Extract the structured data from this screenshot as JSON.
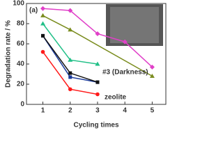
{
  "chart_data": {
    "type": "line",
    "panel_label": "(a)",
    "x_label": "Cycling times",
    "y_label": "Degradation rate / %",
    "xlim": [
      0.4,
      5.5
    ],
    "xticks": [
      1,
      2,
      3,
      4,
      5
    ],
    "ylim": [
      0,
      100
    ],
    "yticks": [
      0,
      20,
      40,
      60,
      80,
      100
    ],
    "series": [
      {
        "color": "#e040c8",
        "x": [
          1,
          2,
          3,
          4,
          5
        ],
        "values": [
          95,
          93,
          70,
          62,
          37
        ]
      },
      {
        "color": "#7a8c1e",
        "x": [
          1,
          2,
          5
        ],
        "values": [
          88,
          74,
          28
        ]
      },
      {
        "color": "#22c088",
        "x": [
          1,
          2,
          3
        ],
        "values": [
          80,
          44,
          40
        ]
      },
      {
        "color": "#1a3a9a",
        "x": [
          1,
          2,
          3
        ],
        "values": [
          68,
          27,
          22
        ]
      },
      {
        "color": "#111111",
        "x": [
          1,
          2,
          3
        ],
        "values": [
          68,
          31,
          22
        ]
      },
      {
        "color": "#ff1a1a",
        "x": [
          1,
          2,
          3
        ],
        "values": [
          52,
          15,
          10
        ]
      }
    ],
    "annotations": [
      {
        "text": "#3 (Darkness)",
        "color": "#111111"
      },
      {
        "text": "zeolite",
        "color": "#ff1a1a"
      }
    ]
  }
}
